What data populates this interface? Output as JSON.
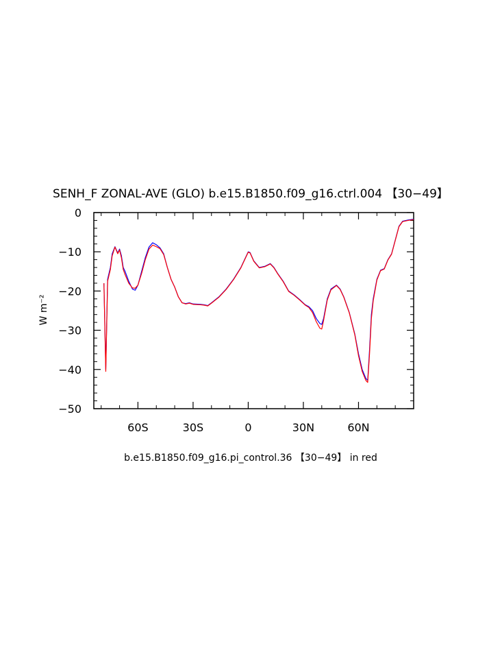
{
  "chart_data": {
    "type": "line",
    "title": "SENH_F ZONAL-AVE (GLO) b.e15.B1850.f09_g16.ctrl.004 【30−49】",
    "subtitle": "b.e15.B1850.f09_g16.pi_control.36 【30−49】 in red",
    "ylabel": "W m⁻²",
    "xlabel": "",
    "xlim": [
      -84,
      90
    ],
    "ylim": [
      -50,
      0
    ],
    "x_ticks": [
      {
        "value": -60,
        "label": "60S"
      },
      {
        "value": -30,
        "label": "30S"
      },
      {
        "value": 0,
        "label": "0"
      },
      {
        "value": 30,
        "label": "30N"
      },
      {
        "value": 60,
        "label": "60N"
      }
    ],
    "y_ticks": [
      {
        "value": 0,
        "label": "0"
      },
      {
        "value": -10,
        "label": "−10"
      },
      {
        "value": -20,
        "label": "−20"
      },
      {
        "value": -30,
        "label": "−30"
      },
      {
        "value": -40,
        "label": "−40"
      },
      {
        "value": -50,
        "label": "−50"
      }
    ],
    "grid": false,
    "legend": "none",
    "series": [
      {
        "color": "#0000ff",
        "points": [
          [
            -78.5,
            -18
          ],
          [
            -77.5,
            -40
          ],
          [
            -76.5,
            -17
          ],
          [
            -75,
            -14
          ],
          [
            -74,
            -10.5
          ],
          [
            -72.5,
            -8.7
          ],
          [
            -71,
            -10.3
          ],
          [
            -70,
            -9.3
          ],
          [
            -69,
            -11
          ],
          [
            -68,
            -14
          ],
          [
            -67,
            -15
          ],
          [
            -65,
            -17.5
          ],
          [
            -63,
            -19.5
          ],
          [
            -61.5,
            -19.8
          ],
          [
            -60,
            -18.5
          ],
          [
            -58,
            -15
          ],
          [
            -56,
            -11.5
          ],
          [
            -54,
            -8.8
          ],
          [
            -52,
            -7.7
          ],
          [
            -50,
            -8.2
          ],
          [
            -48,
            -9
          ],
          [
            -46,
            -10.5
          ],
          [
            -44,
            -14
          ],
          [
            -42,
            -17
          ],
          [
            -40,
            -19
          ],
          [
            -38,
            -21.5
          ],
          [
            -36,
            -23
          ],
          [
            -34,
            -23.2
          ],
          [
            -32,
            -23
          ],
          [
            -30,
            -23.3
          ],
          [
            -26,
            -23.4
          ],
          [
            -24,
            -23.5
          ],
          [
            -22,
            -23.7
          ],
          [
            -20,
            -23
          ],
          [
            -16,
            -21.5
          ],
          [
            -12,
            -19.5
          ],
          [
            -8,
            -17
          ],
          [
            -4,
            -14
          ],
          [
            -2,
            -12
          ],
          [
            0,
            -10
          ],
          [
            1,
            -10.2
          ],
          [
            3,
            -12.3
          ],
          [
            6,
            -14
          ],
          [
            9,
            -13.7
          ],
          [
            12,
            -13
          ],
          [
            14,
            -14
          ],
          [
            16,
            -15.5
          ],
          [
            19,
            -17.5
          ],
          [
            22,
            -20
          ],
          [
            25,
            -21
          ],
          [
            28,
            -22.2
          ],
          [
            31,
            -23.5
          ],
          [
            33,
            -24
          ],
          [
            35,
            -25
          ],
          [
            37,
            -27
          ],
          [
            39,
            -28.3
          ],
          [
            40,
            -28.5
          ],
          [
            41,
            -27
          ],
          [
            43,
            -22
          ],
          [
            45,
            -19.5
          ],
          [
            48,
            -18.5
          ],
          [
            50,
            -19.5
          ],
          [
            52,
            -21.5
          ],
          [
            55,
            -25.5
          ],
          [
            58,
            -31
          ],
          [
            60,
            -36
          ],
          [
            62,
            -40
          ],
          [
            64,
            -42.3
          ],
          [
            65,
            -42.8
          ],
          [
            66,
            -35
          ],
          [
            67,
            -26
          ],
          [
            68,
            -22
          ],
          [
            70,
            -17
          ],
          [
            72,
            -14.7
          ],
          [
            74,
            -14.3
          ],
          [
            76,
            -12
          ],
          [
            78,
            -10.5
          ],
          [
            80,
            -7
          ],
          [
            82,
            -3.5
          ],
          [
            84,
            -2.2
          ],
          [
            87,
            -1.9
          ],
          [
            90,
            -1.7
          ]
        ]
      },
      {
        "color": "#ff0000",
        "points": [
          [
            -78.5,
            -18
          ],
          [
            -77.5,
            -40.5
          ],
          [
            -76.5,
            -17.5
          ],
          [
            -75,
            -14.5
          ],
          [
            -74,
            -11
          ],
          [
            -72.5,
            -8.8
          ],
          [
            -71,
            -10.5
          ],
          [
            -70,
            -9.5
          ],
          [
            -69,
            -11.5
          ],
          [
            -68,
            -14.5
          ],
          [
            -67,
            -15.8
          ],
          [
            -65,
            -18
          ],
          [
            -63,
            -19.2
          ],
          [
            -61.5,
            -19.3
          ],
          [
            -60,
            -18.5
          ],
          [
            -58,
            -15.5
          ],
          [
            -56,
            -12
          ],
          [
            -54,
            -9.3
          ],
          [
            -52,
            -8.3
          ],
          [
            -50,
            -8.7
          ],
          [
            -48,
            -9.2
          ],
          [
            -46,
            -10.7
          ],
          [
            -44,
            -14
          ],
          [
            -42,
            -17
          ],
          [
            -40,
            -19
          ],
          [
            -38,
            -21.5
          ],
          [
            -36,
            -23
          ],
          [
            -34,
            -23.3
          ],
          [
            -32,
            -23.1
          ],
          [
            -30,
            -23.4
          ],
          [
            -26,
            -23.5
          ],
          [
            -24,
            -23.6
          ],
          [
            -22,
            -23.8
          ],
          [
            -20,
            -23.1
          ],
          [
            -16,
            -21.6
          ],
          [
            -12,
            -19.6
          ],
          [
            -8,
            -17.1
          ],
          [
            -4,
            -14.1
          ],
          [
            -2,
            -12.1
          ],
          [
            0,
            -10.1
          ],
          [
            1,
            -10.3
          ],
          [
            3,
            -12.4
          ],
          [
            6,
            -14.1
          ],
          [
            9,
            -13.8
          ],
          [
            12,
            -13.1
          ],
          [
            14,
            -14.1
          ],
          [
            16,
            -15.6
          ],
          [
            19,
            -17.6
          ],
          [
            22,
            -20.1
          ],
          [
            25,
            -21.1
          ],
          [
            28,
            -22.3
          ],
          [
            31,
            -23.6
          ],
          [
            33,
            -24.2
          ],
          [
            35,
            -25.5
          ],
          [
            37,
            -27.8
          ],
          [
            39,
            -29.5
          ],
          [
            40,
            -29.7
          ],
          [
            41,
            -27.5
          ],
          [
            43,
            -22.3
          ],
          [
            45,
            -19.7
          ],
          [
            48,
            -18.6
          ],
          [
            50,
            -19.6
          ],
          [
            52,
            -21.6
          ],
          [
            55,
            -25.6
          ],
          [
            58,
            -31.2
          ],
          [
            60,
            -36.5
          ],
          [
            62,
            -40.5
          ],
          [
            64,
            -42.8
          ],
          [
            65,
            -43.3
          ],
          [
            66,
            -36
          ],
          [
            67,
            -27
          ],
          [
            68,
            -22.5
          ],
          [
            70,
            -17.2
          ],
          [
            72,
            -14.8
          ],
          [
            74,
            -14.4
          ],
          [
            76,
            -12.1
          ],
          [
            78,
            -10.6
          ],
          [
            80,
            -7.1
          ],
          [
            82,
            -3.6
          ],
          [
            84,
            -2.3
          ],
          [
            87,
            -2
          ],
          [
            90,
            -1.8
          ]
        ]
      }
    ]
  }
}
